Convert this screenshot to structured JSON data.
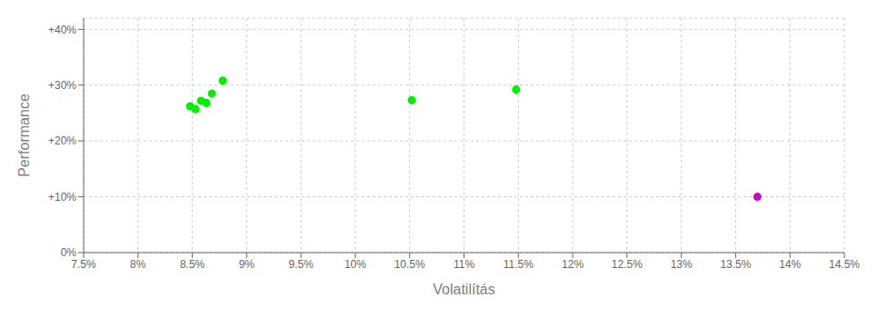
{
  "chart_data": {
    "type": "scatter",
    "xlabel": "Volatilítás",
    "ylabel": "Performance",
    "xlim": [
      0.075,
      0.145
    ],
    "ylim": [
      0.0,
      0.42
    ],
    "xticks": [
      {
        "value": 0.075,
        "label": "7.5%"
      },
      {
        "value": 0.08,
        "label": "8%"
      },
      {
        "value": 0.085,
        "label": "8.5%"
      },
      {
        "value": 0.09,
        "label": "9%"
      },
      {
        "value": 0.095,
        "label": "9.5%"
      },
      {
        "value": 0.1,
        "label": "10%"
      },
      {
        "value": 0.105,
        "label": "10.5%"
      },
      {
        "value": 0.11,
        "label": "11%"
      },
      {
        "value": 0.115,
        "label": "11.5%"
      },
      {
        "value": 0.12,
        "label": "12%"
      },
      {
        "value": 0.125,
        "label": "12.5%"
      },
      {
        "value": 0.13,
        "label": "13%"
      },
      {
        "value": 0.135,
        "label": "13.5%"
      },
      {
        "value": 0.14,
        "label": "14%"
      },
      {
        "value": 0.145,
        "label": "14.5%"
      }
    ],
    "yticks": [
      {
        "value": 0.0,
        "label": "0%"
      },
      {
        "value": 0.1,
        "label": "+10%"
      },
      {
        "value": 0.2,
        "label": "+20%"
      },
      {
        "value": 0.3,
        "label": "+30%"
      },
      {
        "value": 0.4,
        "label": "+40%"
      }
    ],
    "grid": true,
    "series": [
      {
        "color": "#00ee00",
        "x": [
          0.0878,
          0.0868,
          0.0858,
          0.0863,
          0.0853,
          0.0848,
          0.1052,
          0.1148
        ],
        "values": [
          0.308,
          0.285,
          0.272,
          0.268,
          0.257,
          0.262,
          0.273,
          0.292
        ]
      },
      {
        "color": "#cc00cc",
        "x": [
          0.137
        ],
        "values": [
          0.1
        ]
      }
    ]
  }
}
